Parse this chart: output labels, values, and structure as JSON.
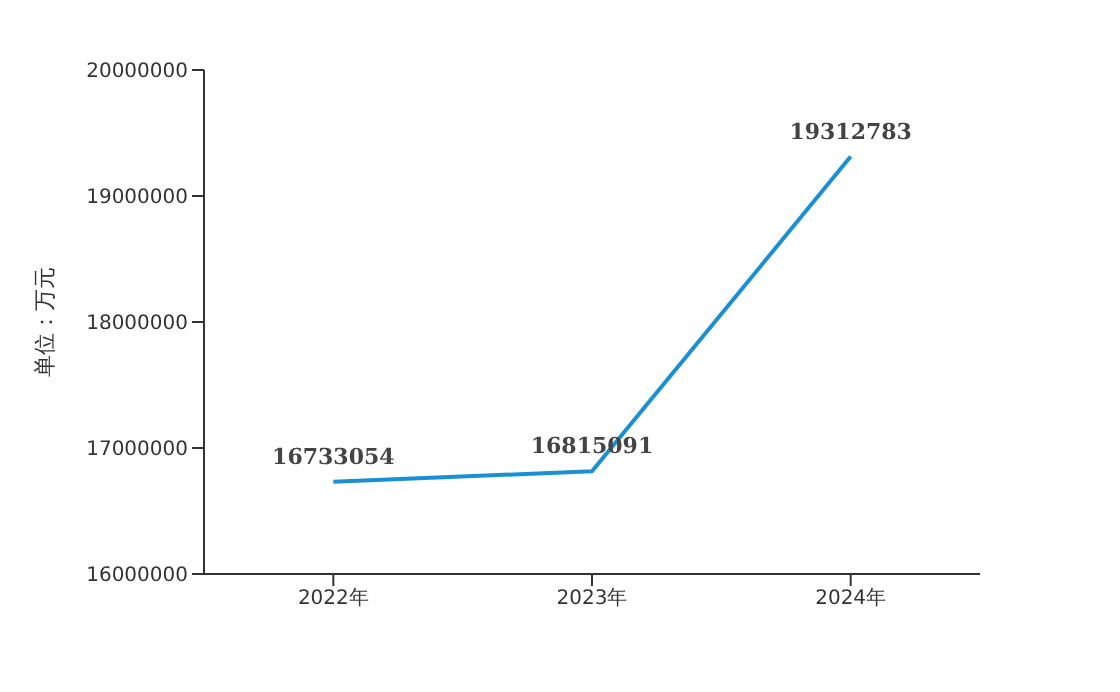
{
  "chart_data": {
    "type": "line",
    "ylabel": "单位：万元",
    "categories": [
      "2022年",
      "2023年",
      "2024年"
    ],
    "series": [
      {
        "color": "#1a8fd4",
        "values": [
          16733054,
          16815091,
          19312783
        ]
      }
    ],
    "ylim": [
      16000000,
      20000000
    ],
    "yticks": [
      16000000,
      17000000,
      18000000,
      19000000,
      20000000
    ],
    "grid": false,
    "marker": "none",
    "line_style": "solid",
    "data_labels": true
  }
}
